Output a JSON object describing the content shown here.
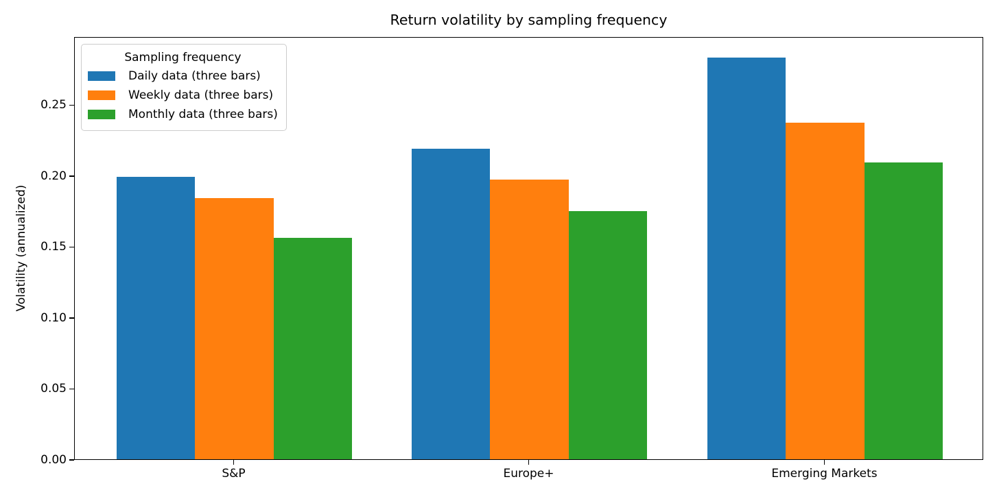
{
  "chart_data": {
    "type": "bar",
    "title": "Return volatility by sampling frequency",
    "xlabel": "",
    "ylabel": "Volatility (annualized)",
    "categories": [
      "S&P",
      "Europe+",
      "Emerging Markets"
    ],
    "series": [
      {
        "name": "Daily data (three bars)",
        "color": "#1f77b4",
        "values": [
          0.199,
          0.219,
          0.283
        ]
      },
      {
        "name": "Weekly data (three bars)",
        "color": "#ff7f0e",
        "values": [
          0.184,
          0.197,
          0.237
        ]
      },
      {
        "name": "Monthly data (three bars)",
        "color": "#2ca02c",
        "values": [
          0.156,
          0.175,
          0.209
        ]
      }
    ],
    "legend": {
      "title": "Sampling frequency",
      "position": "upper left"
    },
    "ylim": [
      0,
      0.298
    ],
    "yticks": [
      "0.00",
      "0.05",
      "0.10",
      "0.15",
      "0.20",
      "0.25"
    ],
    "grid": false,
    "background": "#ffffff",
    "axis_color": "#000000"
  }
}
